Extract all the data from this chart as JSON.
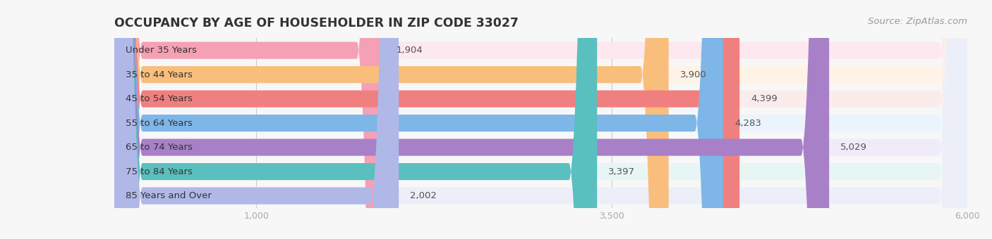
{
  "title": "OCCUPANCY BY AGE OF HOUSEHOLDER IN ZIP CODE 33027",
  "source": "Source: ZipAtlas.com",
  "categories": [
    "Under 35 Years",
    "35 to 44 Years",
    "45 to 54 Years",
    "55 to 64 Years",
    "65 to 74 Years",
    "75 to 84 Years",
    "85 Years and Over"
  ],
  "values": [
    1904,
    3900,
    4399,
    4283,
    5029,
    3397,
    2002
  ],
  "bar_colors": [
    "#F5A0B5",
    "#F9BE7C",
    "#F08080",
    "#7EB6E8",
    "#A880C8",
    "#5ABFBF",
    "#B0B8E8"
  ],
  "bar_bg_colors": [
    "#FCE8EE",
    "#FEF3E6",
    "#FBECEC",
    "#EBF4FC",
    "#F0EBF8",
    "#E8F5F5",
    "#ECEEF8"
  ],
  "xlim": [
    0,
    6000
  ],
  "xticks": [
    1000,
    3500,
    6000
  ],
  "background_color": "#f7f7f7",
  "title_fontsize": 12.5,
  "label_fontsize": 9.5,
  "value_fontsize": 9.5,
  "source_fontsize": 9.5
}
